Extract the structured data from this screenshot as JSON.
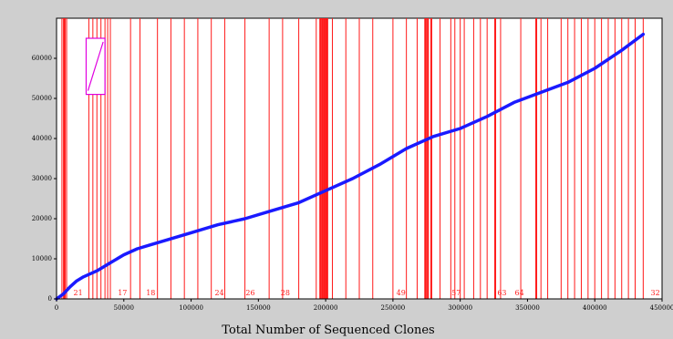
{
  "chart_data": {
    "type": "line",
    "title": "",
    "xlabel": "Total Number of Sequenced Clones",
    "ylabel": "",
    "xlim": [
      0,
      450000
    ],
    "ylim": [
      0,
      70000
    ],
    "x_ticks": [
      0,
      50000,
      100000,
      150000,
      200000,
      250000,
      300000,
      350000,
      400000,
      450000
    ],
    "x_tick_labels": [
      "0",
      "50000",
      "100000",
      "150000",
      "200000",
      "250000",
      "300000",
      "350000",
      "400000",
      "450000"
    ],
    "y_ticks": [
      0,
      10000,
      20000,
      30000,
      40000,
      50000,
      60000
    ],
    "y_tick_labels": [
      "0",
      "10000",
      "20000",
      "30000",
      "40000",
      "50000",
      "60000"
    ],
    "grid": false,
    "series": [
      {
        "color": "#1a1aff",
        "x": [
          0,
          5000,
          10000,
          15000,
          20000,
          30000,
          40000,
          50000,
          60000,
          70000,
          80000,
          90000,
          100000,
          120000,
          140000,
          160000,
          180000,
          200000,
          220000,
          240000,
          260000,
          280000,
          300000,
          320000,
          340000,
          360000,
          380000,
          400000,
          420000,
          436000
        ],
        "y": [
          0,
          1200,
          3000,
          4500,
          5500,
          7000,
          9000,
          11000,
          12500,
          13500,
          14500,
          15500,
          16500,
          18500,
          20000,
          22000,
          24000,
          27000,
          30000,
          33500,
          37500,
          40500,
          42500,
          45500,
          49000,
          51500,
          54000,
          57500,
          62000,
          66000
        ]
      }
    ],
    "vertical_lines": {
      "color": "#ff1a1a",
      "x": [
        4000,
        5500,
        6500,
        7500,
        24000,
        27000,
        30000,
        33000,
        36000,
        38000,
        40000,
        55000,
        62000,
        75000,
        85000,
        95000,
        105000,
        115000,
        125000,
        140000,
        158000,
        168000,
        180000,
        193000,
        197000,
        205000,
        215000,
        225000,
        235000,
        250000,
        260000,
        268000,
        275000,
        285000,
        293000,
        296000,
        300000,
        303000,
        310000,
        315000,
        320000,
        330000,
        345000,
        360000,
        365000,
        375000,
        380000,
        385000,
        390000,
        395000,
        400000,
        405000,
        410000,
        415000,
        420000,
        425000,
        430000,
        436000
      ],
      "thick_x": [
        5500,
        196000,
        197500,
        198800,
        200000,
        201200,
        274000,
        276000,
        278500,
        326000,
        356500
      ]
    },
    "annotations": [
      {
        "text": "21",
        "x": 16000
      },
      {
        "text": "17",
        "x": 49000
      },
      {
        "text": "18",
        "x": 70000
      },
      {
        "text": "24",
        "x": 121000
      },
      {
        "text": "26",
        "x": 144000
      },
      {
        "text": "28",
        "x": 170000
      },
      {
        "text": "49",
        "x": 256000
      },
      {
        "text": "57",
        "x": 297000
      },
      {
        "text": "63",
        "x": 331000
      },
      {
        "text": "64",
        "x": 344000
      },
      {
        "text": "32",
        "x": 445000
      }
    ],
    "inset": {
      "color": "#e000e0",
      "x": [
        22000,
        36000
      ],
      "y": [
        51000,
        65000
      ]
    }
  }
}
